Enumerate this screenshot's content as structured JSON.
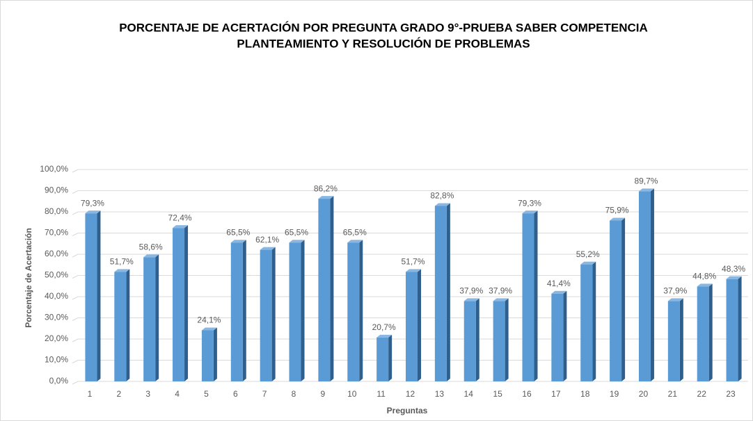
{
  "chart_data": {
    "type": "bar",
    "title": [
      "PORCENTAJE DE ACERTACIÓN POR PREGUNTA GRADO 9°-PRUEBA SABER COMPETENCIA",
      "PLANTEAMIENTO Y RESOLUCIÓN DE PROBLEMAS"
    ],
    "x_label": "Preguntas",
    "y_label": "Porcentaje de Acertación",
    "categories": [
      "1",
      "2",
      "3",
      "4",
      "5",
      "6",
      "7",
      "8",
      "9",
      "10",
      "11",
      "12",
      "13",
      "14",
      "15",
      "16",
      "17",
      "18",
      "19",
      "20",
      "21",
      "22",
      "23"
    ],
    "values": [
      79.3,
      51.7,
      58.6,
      72.4,
      24.1,
      65.5,
      62.1,
      65.5,
      86.2,
      65.5,
      20.7,
      51.7,
      82.8,
      37.9,
      37.9,
      79.3,
      41.4,
      55.2,
      75.9,
      89.7,
      37.9,
      44.8,
      48.3
    ],
    "value_labels": [
      "79,3%",
      "51,7%",
      "58,6%",
      "72,4%",
      "24,1%",
      "65,5%",
      "62,1%",
      "65,5%",
      "86,2%",
      "65,5%",
      "20,7%",
      "51,7%",
      "82,8%",
      "37,9%",
      "37,9%",
      "79,3%",
      "41,4%",
      "55,2%",
      "75,9%",
      "89,7%",
      "37,9%",
      "44,8%",
      "48,3%"
    ],
    "color": "#5b9bd5",
    "ylim": [
      0,
      100
    ],
    "yticks": [
      {
        "value": 0,
        "label": "0,0%"
      },
      {
        "value": 10,
        "label": "10,0%"
      },
      {
        "value": 20,
        "label": "20,0%"
      },
      {
        "value": 30,
        "label": "30,0%"
      },
      {
        "value": 40,
        "label": "40,0%"
      },
      {
        "value": 50,
        "label": "50,0%"
      },
      {
        "value": 60,
        "label": "60,0%"
      },
      {
        "value": 70,
        "label": "70,0%"
      },
      {
        "value": 80,
        "label": "80,0%"
      },
      {
        "value": 90,
        "label": "90,0%"
      },
      {
        "value": 100,
        "label": "100,0%"
      }
    ],
    "grid": true
  }
}
